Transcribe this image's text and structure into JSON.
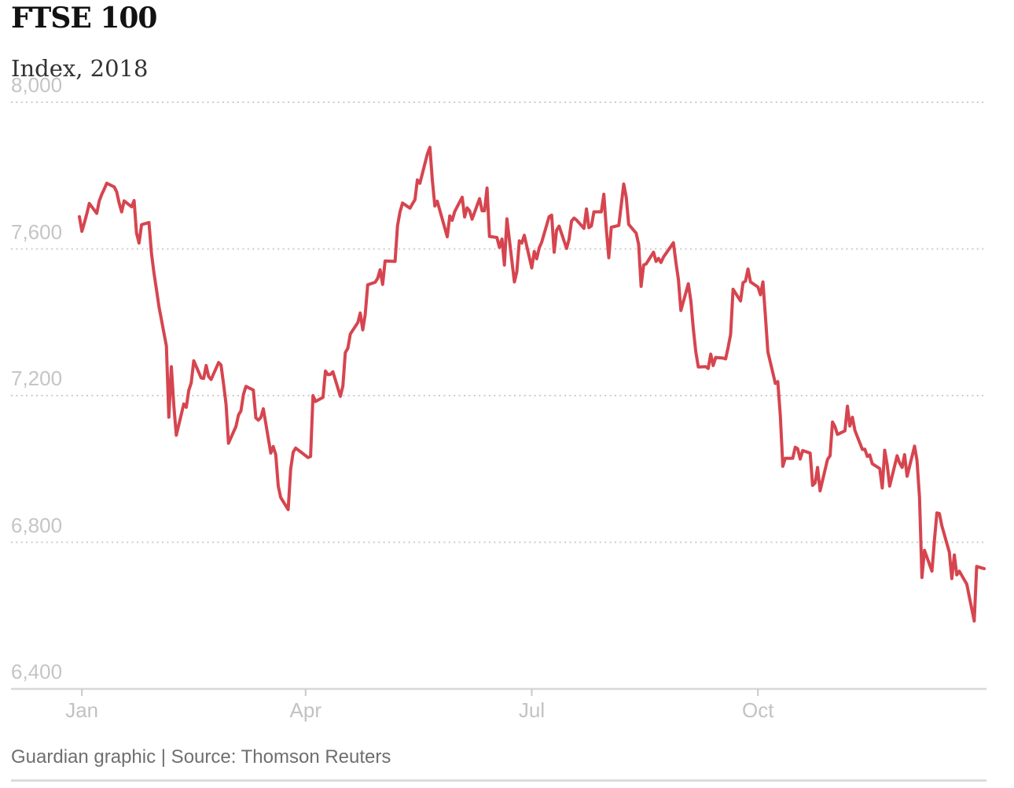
{
  "page": {
    "title": "FTSE 100",
    "subtitle": "Index, 2018",
    "footer": "Guardian graphic | Source: Thomson Reuters"
  },
  "chart_data": {
    "type": "line",
    "title": "FTSE 100",
    "subtitle": "Index, 2018",
    "source_note": "Guardian graphic | Source: Thomson Reuters",
    "grid": "dotted horizontal gridlines, solid bottom axis",
    "legend": "none",
    "x_axis": {
      "label": "",
      "tick_labels": [
        "Jan",
        "Apr",
        "Jul",
        "Oct"
      ],
      "tick_days": [
        2,
        92,
        183,
        274
      ],
      "domain_days": [
        1,
        365
      ]
    },
    "y_axis": {
      "label": "Index, 2018",
      "tick_labels": [
        "8,000",
        "7,600",
        "7,200",
        "6,800",
        "6,400"
      ],
      "tick_values": [
        8000,
        7600,
        7200,
        6800,
        6400
      ],
      "domain": [
        6400,
        8000
      ]
    },
    "series": [
      {
        "name": "FTSE 100",
        "color": "#d6454f",
        "unit": "index points",
        "days": [
          1,
          2,
          3,
          4,
          5,
          8,
          9,
          10,
          11,
          12,
          15,
          16,
          17,
          18,
          19,
          22,
          23,
          24,
          25,
          26,
          29,
          30,
          31,
          32,
          33,
          36,
          37,
          38,
          39,
          40,
          43,
          44,
          45,
          46,
          47,
          50,
          51,
          52,
          53,
          54,
          57,
          58,
          59,
          60,
          61,
          64,
          65,
          66,
          67,
          68,
          71,
          72,
          73,
          74,
          75,
          78,
          79,
          80,
          81,
          82,
          85,
          86,
          87,
          88,
          93,
          94,
          95,
          96,
          99,
          100,
          101,
          102,
          103,
          106,
          107,
          108,
          109,
          110,
          113,
          114,
          115,
          116,
          117,
          120,
          121,
          122,
          123,
          124,
          128,
          129,
          130,
          131,
          134,
          135,
          136,
          137,
          138,
          141,
          142,
          143,
          144,
          145,
          149,
          150,
          151,
          152,
          155,
          156,
          157,
          158,
          159,
          162,
          163,
          164,
          165,
          166,
          169,
          170,
          171,
          172,
          173,
          176,
          177,
          178,
          179,
          180,
          183,
          184,
          185,
          186,
          187,
          190,
          191,
          192,
          193,
          194,
          197,
          198,
          199,
          200,
          201,
          204,
          205,
          206,
          207,
          208,
          211,
          212,
          213,
          214,
          215,
          218,
          219,
          220,
          221,
          222,
          225,
          226,
          227,
          228,
          229,
          232,
          233,
          234,
          235,
          236,
          240,
          241,
          242,
          243,
          246,
          247,
          248,
          249,
          250,
          253,
          254,
          255,
          256,
          257,
          260,
          261,
          262,
          263,
          264,
          267,
          268,
          269,
          270,
          271,
          274,
          275,
          276,
          277,
          278,
          281,
          282,
          283,
          284,
          285,
          288,
          289,
          290,
          291,
          292,
          295,
          296,
          297,
          298,
          299,
          302,
          303,
          304,
          305,
          306,
          309,
          310,
          311,
          312,
          313,
          316,
          317,
          318,
          319,
          320,
          323,
          324,
          325,
          326,
          327,
          330,
          331,
          332,
          333,
          334,
          337,
          338,
          339,
          340,
          341,
          344,
          345,
          346,
          347,
          348,
          351,
          352,
          353,
          354,
          355,
          358,
          361,
          362,
          365
        ],
        "values": [
          7688,
          7648,
          7671,
          7696,
          7724,
          7697,
          7731,
          7749,
          7763,
          7779,
          7769,
          7756,
          7725,
          7701,
          7731,
          7715,
          7732,
          7643,
          7616,
          7666,
          7672,
          7588,
          7534,
          7490,
          7443,
          7335,
          7141,
          7279,
          7171,
          7092,
          7177,
          7168,
          7214,
          7235,
          7295,
          7248,
          7247,
          7282,
          7252,
          7244,
          7290,
          7283,
          7232,
          7176,
          7070,
          7116,
          7147,
          7158,
          7203,
          7225,
          7215,
          7139,
          7133,
          7140,
          7164,
          7043,
          7061,
          7039,
          6953,
          6922,
          6889,
          7000,
          7045,
          7057,
          7031,
          7034,
          7200,
          7184,
          7195,
          7267,
          7257,
          7258,
          7265,
          7198,
          7226,
          7317,
          7329,
          7368,
          7399,
          7425,
          7379,
          7421,
          7502,
          7509,
          7520,
          7543,
          7503,
          7567,
          7566,
          7663,
          7701,
          7725,
          7711,
          7723,
          7734,
          7788,
          7779,
          7859,
          7877,
          7788,
          7717,
          7730,
          7633,
          7690,
          7678,
          7702,
          7741,
          7687,
          7712,
          7704,
          7681,
          7737,
          7704,
          7704,
          7766,
          7634,
          7631,
          7604,
          7627,
          7556,
          7682,
          7510,
          7538,
          7622,
          7616,
          7637,
          7548,
          7593,
          7573,
          7603,
          7618,
          7688,
          7692,
          7591,
          7651,
          7662,
          7601,
          7626,
          7676,
          7684,
          7679,
          7656,
          7709,
          7658,
          7663,
          7701,
          7701,
          7749,
          7653,
          7576,
          7659,
          7664,
          7719,
          7777,
          7741,
          7667,
          7643,
          7612,
          7498,
          7556,
          7559,
          7591,
          7566,
          7574,
          7563,
          7578,
          7617,
          7563,
          7516,
          7432,
          7505,
          7458,
          7383,
          7319,
          7278,
          7279,
          7274,
          7313,
          7282,
          7304,
          7302,
          7300,
          7331,
          7367,
          7490,
          7458,
          7508,
          7512,
          7545,
          7510,
          7496,
          7475,
          7510,
          7418,
          7319,
          7233,
          7238,
          7146,
          7007,
          7029,
          7029,
          7059,
          7055,
          7027,
          7050,
          7043,
          6955,
          6962,
          7004,
          6940,
          7026,
          7036,
          7128,
          7115,
          7094,
          7104,
          7171,
          7117,
          7141,
          7105,
          7053,
          7054,
          7034,
          7038,
          7014,
          7001,
          6948,
          7051,
          7011,
          6953,
          7036,
          7016,
          7004,
          7039,
          6980,
          7062,
          7023,
          6922,
          6704,
          6778,
          6721,
          6806,
          6880,
          6878,
          6845,
          6773,
          6701,
          6765,
          6711,
          6721,
          6686,
          6585,
          6734,
          6728
        ]
      }
    ],
    "colors": {
      "line": "#d6454f",
      "gridline": "#cccccc",
      "axis": "#d8d8d8",
      "tick_label": "#c2c2c2"
    }
  }
}
